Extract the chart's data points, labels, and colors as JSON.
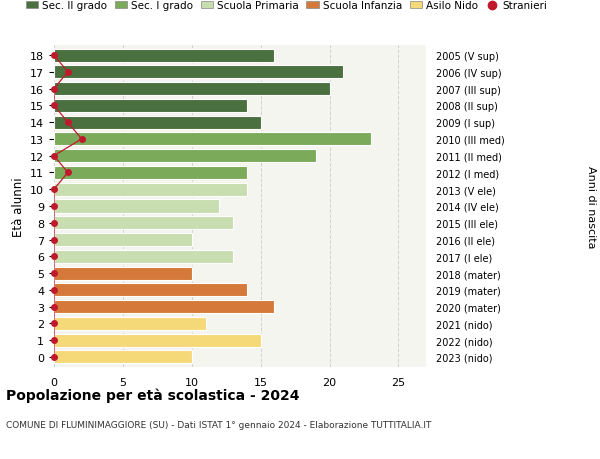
{
  "ages": [
    18,
    17,
    16,
    15,
    14,
    13,
    12,
    11,
    10,
    9,
    8,
    7,
    6,
    5,
    4,
    3,
    2,
    1,
    0
  ],
  "right_labels": [
    "2005 (V sup)",
    "2006 (IV sup)",
    "2007 (III sup)",
    "2008 (II sup)",
    "2009 (I sup)",
    "2010 (III med)",
    "2011 (II med)",
    "2012 (I med)",
    "2013 (V ele)",
    "2014 (IV ele)",
    "2015 (III ele)",
    "2016 (II ele)",
    "2017 (I ele)",
    "2018 (mater)",
    "2019 (mater)",
    "2020 (mater)",
    "2021 (nido)",
    "2022 (nido)",
    "2023 (nido)"
  ],
  "bar_values": [
    16,
    21,
    20,
    14,
    15,
    23,
    19,
    14,
    14,
    12,
    13,
    10,
    13,
    10,
    14,
    16,
    11,
    15,
    10
  ],
  "bar_colors": [
    "#4a7040",
    "#4a7040",
    "#4a7040",
    "#4a7040",
    "#4a7040",
    "#7aaa5a",
    "#7aaa5a",
    "#7aaa5a",
    "#c8ddb0",
    "#c8ddb0",
    "#c8ddb0",
    "#c8ddb0",
    "#c8ddb0",
    "#d4793a",
    "#d4793a",
    "#d4793a",
    "#f5d878",
    "#f5d878",
    "#f5d878"
  ],
  "legend_labels": [
    "Sec. II grado",
    "Sec. I grado",
    "Scuola Primaria",
    "Scuola Infanzia",
    "Asilo Nido",
    "Stranieri"
  ],
  "legend_colors": [
    "#4a7040",
    "#7aaa5a",
    "#c8ddb0",
    "#d4793a",
    "#f5d878",
    "#c0192c"
  ],
  "title": "Popolazione per età scolastica - 2024",
  "subtitle": "COMUNE DI FLUMINIMAGGIORE (SU) - Dati ISTAT 1° gennaio 2024 - Elaborazione TUTTITALIA.IT",
  "ylabel": "Età alunni",
  "ylabel_right": "Anni di nascita",
  "xlim": [
    0,
    27
  ],
  "xticks": [
    0,
    5,
    10,
    15,
    20,
    25
  ],
  "background_color": "#ffffff",
  "plot_bg_color": "#f5f5f0",
  "grid_color": "#d0d0d0",
  "stranieri_color": "#c0192c",
  "stranieri_x": [
    0,
    1,
    0,
    0,
    1,
    2,
    0,
    1,
    0,
    0,
    0,
    0,
    0,
    0,
    0,
    0,
    0,
    0,
    0
  ]
}
